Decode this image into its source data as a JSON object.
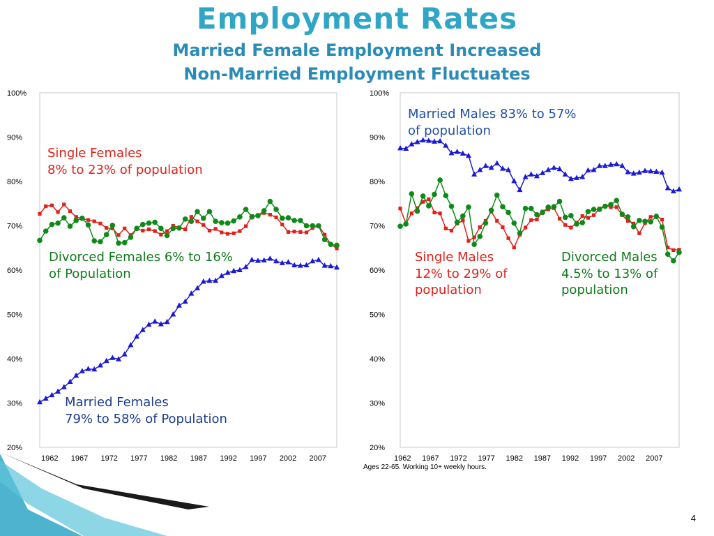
{
  "slide": {
    "title": "Employment Rates",
    "subtitle_1": "Married Female Employment Increased",
    "subtitle_2": "Non-Married Employment Fluctuates",
    "page_number": "4",
    "note": "Ages 22-65.  Working 10+ weekly hours."
  },
  "colors": {
    "married": "#1a1ad6",
    "single": "#e0201a",
    "divorced": "#0f8a1a",
    "married_text": "#2050a8",
    "title": "#2fa6c6"
  },
  "chart_data": [
    {
      "type": "line",
      "panel": "females",
      "ylim": [
        20,
        100
      ],
      "xlim": [
        1962,
        2011
      ],
      "y_ticks": [
        20,
        30,
        40,
        50,
        60,
        70,
        80,
        90,
        100
      ],
      "y_tick_labels": [
        "20%",
        "30%",
        "40%",
        "50%",
        "60%",
        "70%",
        "80%",
        "90%",
        "100%"
      ],
      "x_ticks": [
        1962,
        1967,
        1972,
        1977,
        1982,
        1987,
        1992,
        1997,
        2002,
        2007
      ],
      "x_tick_labels": [
        "1962",
        "1967",
        "1972",
        "1977",
        "1982",
        "1987",
        "1992",
        "1997",
        "2002",
        "2007"
      ],
      "grid": false,
      "annotations": [
        {
          "text": "Single Females",
          "series": "single"
        },
        {
          "text": "8% to 23% of population",
          "series": "single"
        },
        {
          "text": "Divorced Females 6% to 16%",
          "series": "divorced"
        },
        {
          "text": "of Population",
          "series": "divorced"
        },
        {
          "text": "Married Females",
          "series": "married"
        },
        {
          "text": "79% to 58%  of Population",
          "series": "married"
        }
      ],
      "series": [
        {
          "key": "single",
          "marker": "square",
          "x_start": 1962,
          "values": [
            72.7,
            74.4,
            74.6,
            73.1,
            74.8,
            73.3,
            72.0,
            71.6,
            71.3,
            71.0,
            70.5,
            69.5,
            69.4,
            67.9,
            69.4,
            67.9,
            69.3,
            68.9,
            69.2,
            68.8,
            68.0,
            68.8,
            70.0,
            69.6,
            69.2,
            72.0,
            71.0,
            70.2,
            68.9,
            69.3,
            68.5,
            68.2,
            68.3,
            68.8,
            69.9,
            72.2,
            72.3,
            72.9,
            72.5,
            71.9,
            70.3,
            68.6,
            68.7,
            68.6,
            68.5,
            69.5,
            70.0,
            68.0,
            65.8,
            64.9
          ]
        },
        {
          "key": "divorced",
          "marker": "circle",
          "x_start": 1962,
          "values": [
            66.7,
            68.8,
            70.3,
            70.6,
            71.8,
            69.9,
            71.2,
            71.7,
            70.2,
            66.6,
            66.4,
            68.0,
            70.1,
            66.1,
            66.2,
            67.4,
            69.4,
            70.3,
            70.6,
            70.8,
            69.4,
            67.8,
            69.4,
            69.5,
            71.5,
            71.0,
            73.2,
            71.7,
            73.2,
            71.0,
            70.7,
            70.6,
            71.1,
            72.0,
            73.7,
            72.0,
            72.3,
            73.4,
            75.5,
            73.7,
            71.7,
            71.8,
            71.2,
            71.2,
            70.0,
            70.0,
            70.0,
            66.9,
            65.8,
            65.6
          ]
        },
        {
          "key": "married",
          "marker": "triangle",
          "x_start": 1962,
          "values": [
            30.2,
            31.0,
            31.8,
            32.6,
            33.6,
            34.8,
            36.2,
            37.2,
            37.7,
            37.6,
            38.5,
            39.5,
            40.2,
            39.9,
            41.0,
            43.1,
            45.0,
            46.5,
            47.7,
            48.4,
            47.8,
            48.3,
            50.0,
            52.0,
            52.9,
            54.7,
            55.9,
            57.4,
            57.6,
            57.6,
            58.7,
            59.4,
            59.8,
            60.0,
            60.7,
            62.3,
            62.1,
            62.2,
            62.6,
            62.0,
            61.6,
            61.8,
            61.1,
            61.0,
            61.1,
            62.0,
            62.3,
            61.0,
            60.9,
            60.6
          ]
        }
      ]
    },
    {
      "type": "line",
      "panel": "males",
      "ylim": [
        20,
        100
      ],
      "xlim": [
        1962,
        2011
      ],
      "y_ticks": [
        20,
        30,
        40,
        50,
        60,
        70,
        80,
        90,
        100
      ],
      "y_tick_labels": [
        "20%",
        "30%",
        "40%",
        "50%",
        "60%",
        "70%",
        "80%",
        "90%",
        "100%"
      ],
      "x_ticks": [
        1962,
        1967,
        1972,
        1977,
        1982,
        1987,
        1992,
        1997,
        2002,
        2007
      ],
      "x_tick_labels": [
        "1962",
        "1967",
        "1972",
        "1977",
        "1982",
        "1987",
        "1992",
        "1997",
        "2002",
        "2007"
      ],
      "grid": false,
      "annotations": [
        {
          "text": "Married Males 83% to 57%",
          "series": "married"
        },
        {
          "text": "of population",
          "series": "married"
        },
        {
          "text": "Single Males",
          "series": "single"
        },
        {
          "text": "12% to 29% of",
          "series": "single"
        },
        {
          "text": "population",
          "series": "single"
        },
        {
          "text": "Divorced Males",
          "series": "divorced"
        },
        {
          "text": "4.5% to 13% of",
          "series": "divorced"
        },
        {
          "text": "population",
          "series": "divorced"
        }
      ],
      "series": [
        {
          "key": "single",
          "marker": "square",
          "x_start": 1962,
          "values": [
            73.9,
            70.5,
            72.8,
            74.0,
            75.4,
            76.0,
            73.0,
            72.8,
            69.4,
            68.9,
            70.5,
            71.2,
            66.6,
            67.4,
            69.7,
            71.1,
            73.2,
            71.1,
            69.7,
            67.2,
            65.1,
            68.0,
            69.6,
            71.3,
            71.4,
            73.2,
            73.7,
            74.0,
            71.6,
            70.2,
            69.6,
            70.7,
            72.2,
            71.8,
            72.4,
            73.9,
            74.5,
            74.2,
            74.2,
            72.4,
            71.1,
            70.5,
            68.3,
            70.6,
            72.0,
            72.3,
            71.4,
            65.1,
            64.5,
            64.6
          ]
        },
        {
          "key": "divorced",
          "marker": "circle",
          "x_start": 1962,
          "values": [
            69.9,
            70.4,
            77.2,
            73.3,
            76.7,
            74.5,
            77.1,
            80.3,
            76.8,
            74.4,
            70.8,
            72.2,
            74.2,
            65.8,
            67.6,
            70.6,
            73.5,
            76.9,
            74.3,
            73.0,
            70.6,
            68.3,
            73.9,
            73.9,
            72.5,
            73.0,
            74.2,
            74.3,
            75.5,
            71.9,
            72.3,
            70.4,
            70.7,
            73.2,
            73.7,
            73.7,
            74.4,
            74.8,
            75.7,
            72.6,
            72.0,
            69.8,
            71.2,
            71.0,
            70.9,
            72.1,
            69.7,
            63.6,
            62.1,
            64.0
          ]
        },
        {
          "key": "married",
          "marker": "triangle",
          "x_start": 1962,
          "values": [
            87.5,
            87.4,
            88.4,
            88.9,
            89.3,
            89.2,
            89.0,
            89.1,
            88.1,
            86.4,
            86.7,
            86.3,
            85.8,
            81.6,
            82.6,
            83.5,
            83.1,
            84.1,
            82.9,
            82.6,
            80.1,
            78.1,
            81.0,
            81.6,
            81.2,
            81.9,
            82.6,
            83.1,
            82.8,
            81.6,
            80.6,
            80.8,
            81.0,
            82.5,
            82.6,
            83.5,
            83.5,
            83.8,
            83.9,
            83.5,
            82.1,
            81.8,
            82.0,
            82.4,
            82.3,
            82.2,
            82.0,
            78.5,
            77.8,
            78.2
          ]
        }
      ]
    }
  ]
}
